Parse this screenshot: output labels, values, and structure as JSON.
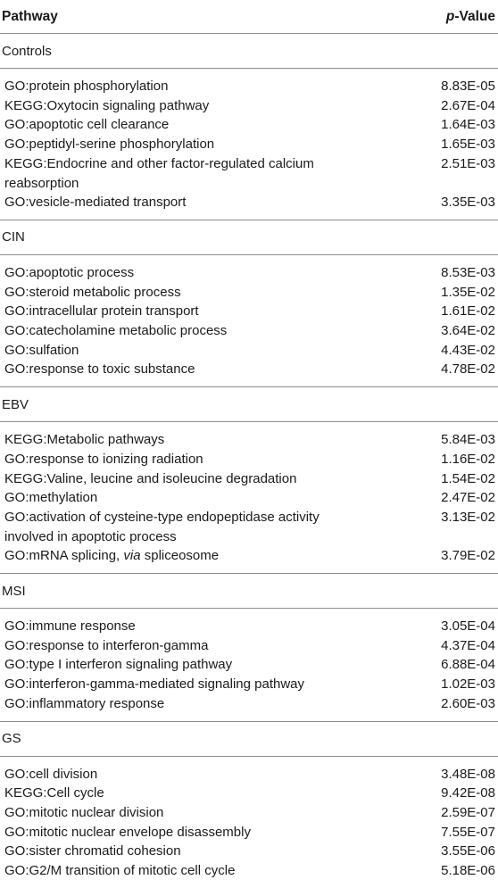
{
  "header": {
    "pathway_label": "Pathway",
    "pvalue_prefix": "p",
    "pvalue_suffix": "-Value"
  },
  "groups": [
    {
      "title": "Controls",
      "rows": [
        {
          "name": "GO:protein phosphorylation",
          "value": "8.83E-05"
        },
        {
          "name": "KEGG:Oxytocin signaling pathway",
          "value": "2.67E-04"
        },
        {
          "name": "GO:apoptotic cell clearance",
          "value": "1.64E-03"
        },
        {
          "name": "GO:peptidyl-serine phosphorylation",
          "value": "1.65E-03"
        },
        {
          "name": "KEGG:Endocrine and other factor-regulated calcium reabsorption",
          "value": "2.51E-03"
        },
        {
          "name": "GO:vesicle-mediated transport",
          "value": "3.35E-03"
        }
      ]
    },
    {
      "title": "CIN",
      "rows": [
        {
          "name": "GO:apoptotic process",
          "value": "8.53E-03"
        },
        {
          "name": "GO:steroid metabolic process",
          "value": "1.35E-02"
        },
        {
          "name": "GO:intracellular protein transport",
          "value": "1.61E-02"
        },
        {
          "name": "GO:catecholamine metabolic process",
          "value": "3.64E-02"
        },
        {
          "name": "GO:sulfation",
          "value": "4.43E-02"
        },
        {
          "name": "GO:response to toxic substance",
          "value": "4.78E-02"
        }
      ]
    },
    {
      "title": "EBV",
      "rows": [
        {
          "name": "KEGG:Metabolic pathways",
          "value": "5.84E-03"
        },
        {
          "name": "GO:response to ionizing radiation",
          "value": "1.16E-02"
        },
        {
          "name": "KEGG:Valine, leucine and isoleucine degradation",
          "value": "1.54E-02"
        },
        {
          "name": "GO:methylation",
          "value": "2.47E-02"
        },
        {
          "name": "GO:activation of cysteine-type endopeptidase activity involved in apoptotic process",
          "value": "3.13E-02"
        },
        {
          "name_parts": [
            "GO:mRNA splicing, ",
            "via",
            " spliceosome"
          ],
          "value": "3.79E-02"
        }
      ]
    },
    {
      "title": "MSI",
      "rows": [
        {
          "name": "GO:immune response",
          "value": "3.05E-04"
        },
        {
          "name": "GO:response to interferon-gamma",
          "value": "4.37E-04"
        },
        {
          "name": "GO:type I interferon signaling pathway",
          "value": "6.88E-04"
        },
        {
          "name": "GO:interferon-gamma-mediated signaling pathway",
          "value": "1.02E-03"
        },
        {
          "name": "GO:inflammatory response",
          "value": "2.60E-03"
        }
      ]
    },
    {
      "title": "GS",
      "rows": [
        {
          "name": "GO:cell division",
          "value": "3.48E-08"
        },
        {
          "name": "KEGG:Cell cycle",
          "value": "9.42E-08"
        },
        {
          "name": "GO:mitotic nuclear division",
          "value": "2.59E-07"
        },
        {
          "name": "GO:mitotic nuclear envelope disassembly",
          "value": "7.55E-07"
        },
        {
          "name": "GO:sister chromatid cohesion",
          "value": "3.55E-06"
        },
        {
          "name": "GO:G2/M transition of mitotic cell cycle",
          "value": "5.18E-06"
        }
      ]
    }
  ]
}
